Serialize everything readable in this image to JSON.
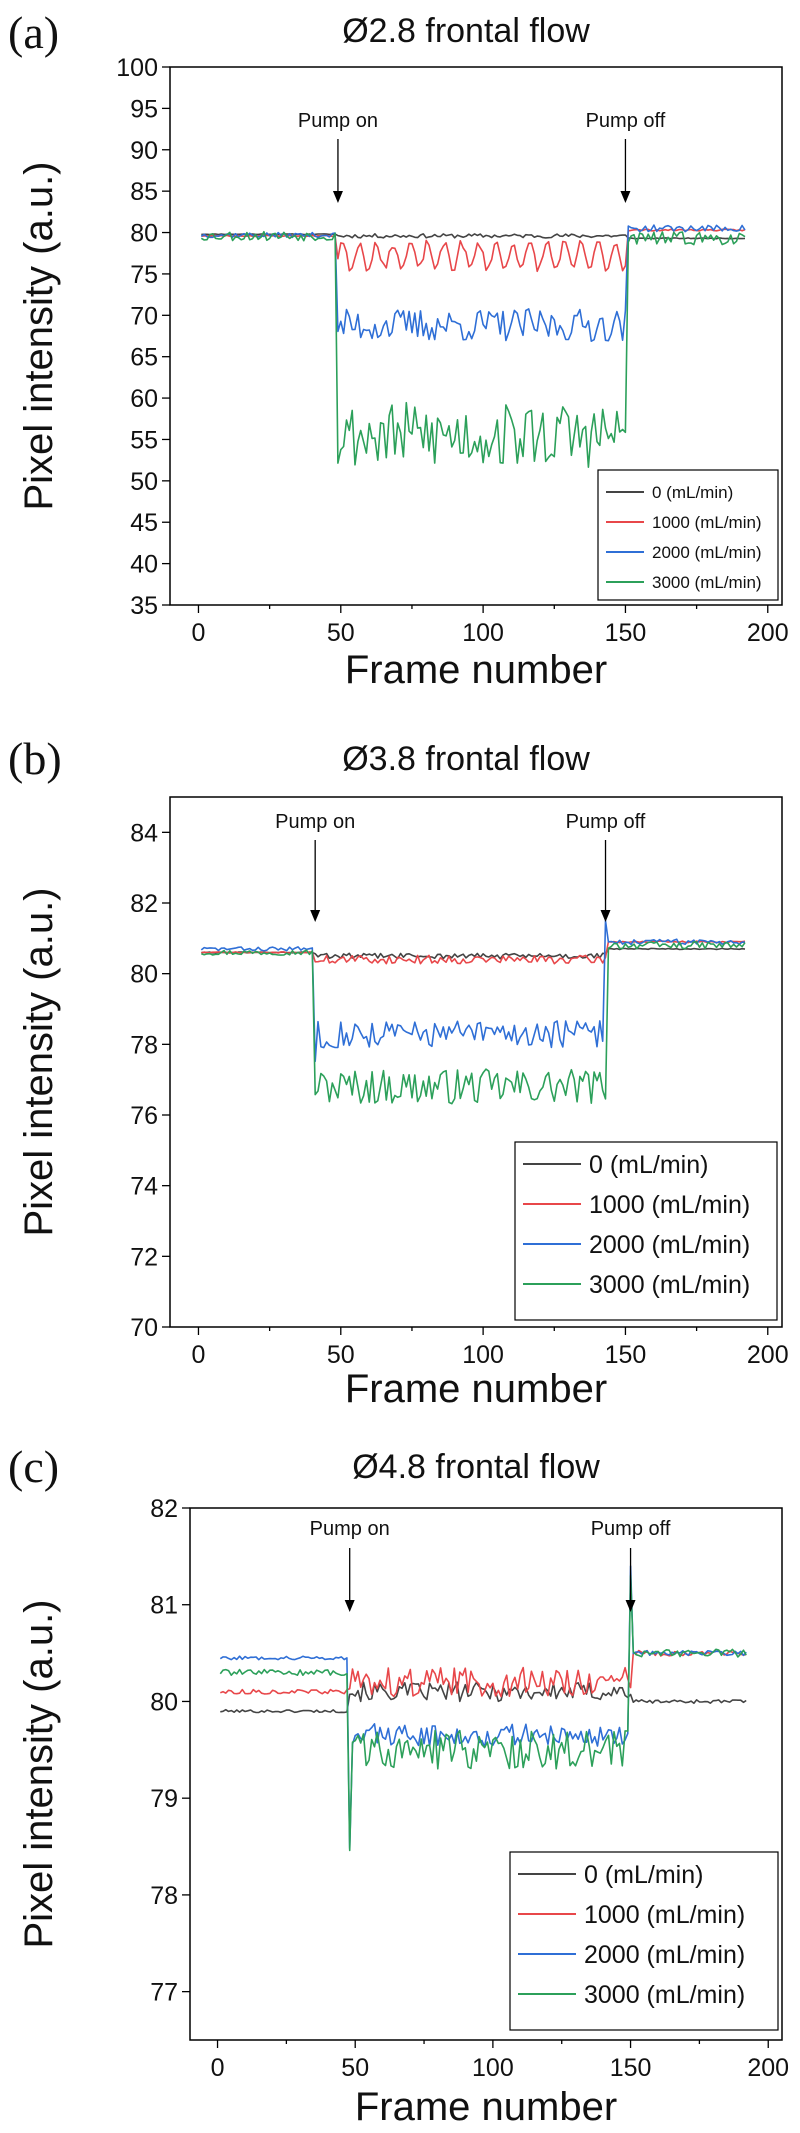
{
  "chart_data": [
    {
      "panel": "(a)",
      "type": "line",
      "title": "Ø2.8 frontal flow",
      "xlabel": "Frame number",
      "ylabel": "Pixel intensity (a.u.)",
      "xlim": [
        -10,
        205
      ],
      "ylim": [
        35,
        100
      ],
      "xticks": [
        0,
        50,
        100,
        150,
        200
      ],
      "yticks": [
        35,
        40,
        45,
        50,
        55,
        60,
        65,
        70,
        75,
        80,
        85,
        90,
        95,
        100
      ],
      "legend": "bottom-right",
      "annotations": [
        {
          "text": "Pump on",
          "x": 49
        },
        {
          "text": "Pump off",
          "x": 150
        }
      ],
      "series": [
        {
          "name": "0 (mL/min)",
          "color": "#444444",
          "pre": 79.8,
          "during": 79.6,
          "post": 79.3,
          "noise": 0.25,
          "osc": 0,
          "oscPeriod": 8,
          "spike": 0,
          "seed": 11
        },
        {
          "name": "1000 (mL/min)",
          "color": "#e8474a",
          "pre": 79.6,
          "during": 77.2,
          "post": 80.3,
          "noise": 0.5,
          "osc": 1.6,
          "oscPeriod": 6,
          "spike": 0,
          "seed": 23
        },
        {
          "name": "2000 (mL/min)",
          "color": "#2f6fd6",
          "pre": 79.7,
          "during": 68.8,
          "post": 80.5,
          "noise": 2.0,
          "osc": 0,
          "oscPeriod": 8,
          "spike": 0,
          "seed": 37
        },
        {
          "name": "3000 (mL/min)",
          "color": "#2ca05a",
          "pre": 79.6,
          "during": 55.5,
          "post": 79.3,
          "noise": 4.0,
          "osc": 0,
          "oscPeriod": 8,
          "spike": 0,
          "seed": 53
        }
      ]
    },
    {
      "panel": "(b)",
      "type": "line",
      "title": "Ø3.8 frontal flow",
      "xlabel": "Frame number",
      "ylabel": "Pixel intensity (a.u.)",
      "xlim": [
        -10,
        205
      ],
      "ylim": [
        70,
        85
      ],
      "xticks": [
        0,
        50,
        100,
        150,
        200
      ],
      "yticks": [
        70,
        72,
        74,
        76,
        78,
        80,
        82,
        84
      ],
      "legend": "bottom-right",
      "annotations": [
        {
          "text": "Pump on",
          "x": 41
        },
        {
          "text": "Pump off",
          "x": 143
        }
      ],
      "series": [
        {
          "name": "0 (mL/min)",
          "color": "#444444",
          "pre": 80.6,
          "during": 80.5,
          "post": 80.7,
          "noise": 0.08,
          "osc": 0,
          "oscPeriod": 8,
          "spike": 0,
          "seed": 61
        },
        {
          "name": "1000 (mL/min)",
          "color": "#e8474a",
          "pre": 80.6,
          "during": 80.4,
          "post": 80.9,
          "noise": 0.12,
          "osc": 0,
          "oscPeriod": 8,
          "spike": 0,
          "seed": 71
        },
        {
          "name": "2000 (mL/min)",
          "color": "#2f6fd6",
          "pre": 80.7,
          "during": 78.3,
          "post": 80.9,
          "noise": 0.4,
          "osc": 0,
          "oscPeriod": 8,
          "spike": 0.6,
          "seed": 83
        },
        {
          "name": "3000 (mL/min)",
          "color": "#2ca05a",
          "pre": 80.6,
          "during": 76.8,
          "post": 80.8,
          "noise": 0.5,
          "osc": 0,
          "oscPeriod": 8,
          "spike": 0,
          "seed": 97
        }
      ]
    },
    {
      "panel": "(c)",
      "type": "line",
      "title": "Ø4.8 frontal flow",
      "xlabel": "Frame number",
      "ylabel": "Pixel intensity (a.u.)",
      "xlim": [
        -10,
        205
      ],
      "ylim": [
        76.5,
        82
      ],
      "xticks": [
        0,
        50,
        100,
        150,
        200
      ],
      "yticks": [
        77,
        78,
        79,
        80,
        81,
        82
      ],
      "legend": "bottom-right",
      "annotations": [
        {
          "text": "Pump on",
          "x": 48
        },
        {
          "text": "Pump off",
          "x": 150
        }
      ],
      "series": [
        {
          "name": "0 (mL/min)",
          "color": "#444444",
          "pre": 79.9,
          "during": 80.1,
          "post": 80.0,
          "noise": 0.1,
          "osc": 0,
          "oscPeriod": 8,
          "spike": 0,
          "seed": 101
        },
        {
          "name": "1000 (mL/min)",
          "color": "#e8474a",
          "pre": 80.1,
          "during": 80.2,
          "post": 80.5,
          "noise": 0.15,
          "osc": 0,
          "oscPeriod": 8,
          "spike": 0,
          "seed": 113
        },
        {
          "name": "2000 (mL/min)",
          "color": "#2f6fd6",
          "pre": 80.45,
          "during": 79.65,
          "post": 80.5,
          "noise": 0.12,
          "osc": 0,
          "oscPeriod": 8,
          "spike": 0.9,
          "seed": 127
        },
        {
          "name": "3000 (mL/min)",
          "color": "#2ca05a",
          "pre": 80.3,
          "during": 79.5,
          "post": 80.5,
          "noise": 0.2,
          "osc": 0,
          "oscPeriod": 8,
          "spike": 0.8,
          "seed": 139
        }
      ]
    }
  ]
}
